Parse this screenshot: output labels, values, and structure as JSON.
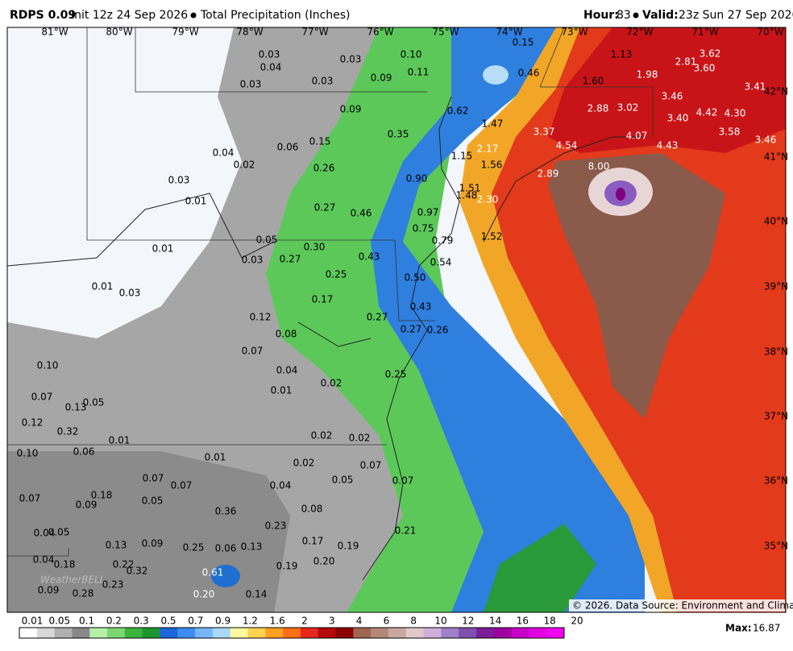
{
  "header": {
    "model": "RDPS 0.09",
    "init": "Init 12z 24 Sep 2026",
    "product": "Total Precipitation (Inches)",
    "hour_label": "Hour:",
    "hour": "83",
    "valid_label": "Valid:",
    "valid": "23z Sun 27 Sep 2026"
  },
  "longitude_labels": [
    "81°W",
    "80°W",
    "79°W",
    "78°W",
    "77°W",
    "76°W",
    "75°W",
    "74°W",
    "73°W",
    "72°W",
    "71°W",
    "70°W"
  ],
  "latitude_labels": [
    "42°N",
    "41°N",
    "40°N",
    "39°N",
    "38°N",
    "37°N",
    "36°N",
    "35°N"
  ],
  "map_labels": [
    "0.03",
    "0.04",
    "0.03",
    "0.10",
    "0.15",
    "1.13",
    "3.62",
    "2.81",
    "3.60",
    "1.98",
    "0.11",
    "0.46",
    "1.60",
    "0.03",
    "0.03",
    "0.09",
    "3.41",
    "0.62",
    "2.88",
    "3.02",
    "3.46",
    "0.09",
    "3.40",
    "4.42",
    "4.30",
    "1.47",
    "3.37",
    "4.07",
    "3.58",
    "0.35",
    "0.15",
    "0.06",
    "4.54",
    "4.43",
    "3.46",
    "0.04",
    "2.17",
    "1.15",
    "1.56",
    "0.02",
    "0.26",
    "2.89",
    "8.00",
    "0.03",
    "0.90",
    "1.51",
    "2.30",
    "1.48",
    "0.01",
    "0.27",
    "0.46",
    "0.97",
    "0.75",
    "1.52",
    "0.79",
    "0.05",
    "0.30",
    "0.43",
    "0.01",
    "0.03",
    "0.27",
    "0.54",
    "0.25",
    "0.50",
    "0.01",
    "0.03",
    "0.17",
    "0.43",
    "0.12",
    "0.27",
    "0.27",
    "0.26",
    "0.08",
    "0.07",
    "0.04",
    "0.10",
    "0.25",
    "0.02",
    "0.01",
    "0.07",
    "0.13",
    "0.05",
    "0.12",
    "0.32",
    "0.01",
    "0.02",
    "0.02",
    "0.06",
    "0.10",
    "0.01",
    "0.02",
    "0.07",
    "0.07",
    "0.07",
    "0.04",
    "0.05",
    "0.07",
    "0.18",
    "0.07",
    "0.09",
    "0.05",
    "0.36",
    "0.08",
    "0.23",
    "0.04",
    "0.05",
    "0.21",
    "0.13",
    "0.09",
    "0.25",
    "0.06",
    "0.13",
    "0.17",
    "0.19",
    "0.04",
    "0.18",
    "0.22",
    "0.32",
    "0.20",
    "0.19",
    "0.61",
    "0.23",
    "0.28",
    "0.20",
    "0.14",
    "0.09"
  ],
  "colorbar": {
    "labels": [
      "0.01",
      "0.05",
      "0.1",
      "0.2",
      "0.3",
      "0.5",
      "0.7",
      "0.9",
      "1.2",
      "1.6",
      "2",
      "3",
      "4",
      "6",
      "8",
      "10",
      "12",
      "14",
      "16",
      "18",
      "20"
    ]
  },
  "footer": {
    "credit": "© 2026. Data Source: Environment and Climate Change Canada.",
    "logo": "WeatherBELL",
    "max_label": "Max:",
    "max": "16.87"
  }
}
